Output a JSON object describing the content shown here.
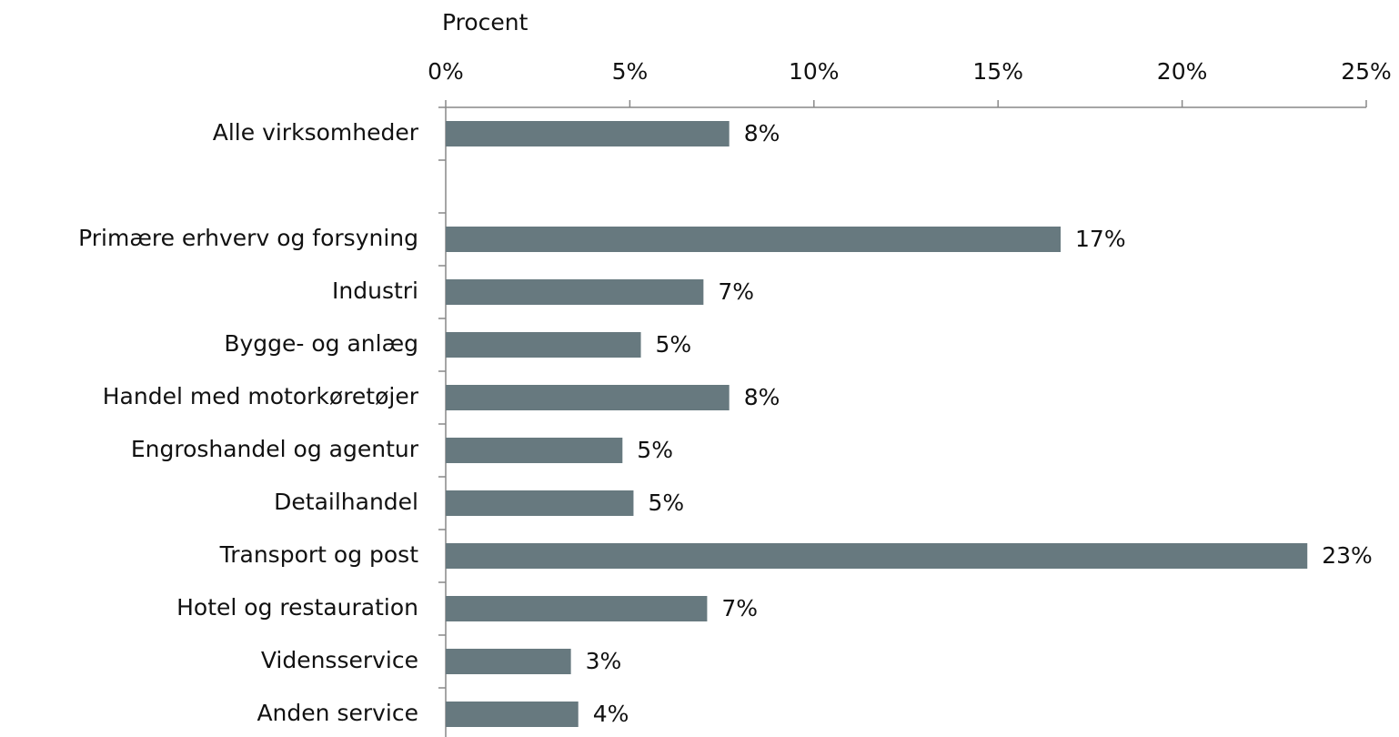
{
  "chart_data": {
    "type": "bar",
    "orientation": "horizontal",
    "axis_title": "Procent",
    "categories": [
      "Alle virksomheder",
      null,
      "Primære erhverv og forsyning",
      "Industri",
      "Bygge- og anlæg",
      "Handel med motorkøretøjer",
      "Engroshandel og agentur",
      "Detailhandel",
      "Transport og post",
      "Hotel og restauration",
      "Vidensservice",
      "Anden service"
    ],
    "values": [
      7.7,
      null,
      16.7,
      7.0,
      5.3,
      7.7,
      4.8,
      5.1,
      23.4,
      7.1,
      3.4,
      3.6
    ],
    "value_labels": [
      "8%",
      null,
      "17%",
      "7%",
      "5%",
      "8%",
      "5%",
      "5%",
      "23%",
      "7%",
      "3%",
      "4%"
    ],
    "color": "#67797f",
    "xlim": [
      0,
      25
    ],
    "xticks": [
      {
        "value": 0,
        "label": "0%"
      },
      {
        "value": 5,
        "label": "5%"
      },
      {
        "value": 10,
        "label": "10%"
      },
      {
        "value": 15,
        "label": "15%"
      },
      {
        "value": 20,
        "label": "20%"
      },
      {
        "value": 25,
        "label": "25%"
      }
    ]
  }
}
